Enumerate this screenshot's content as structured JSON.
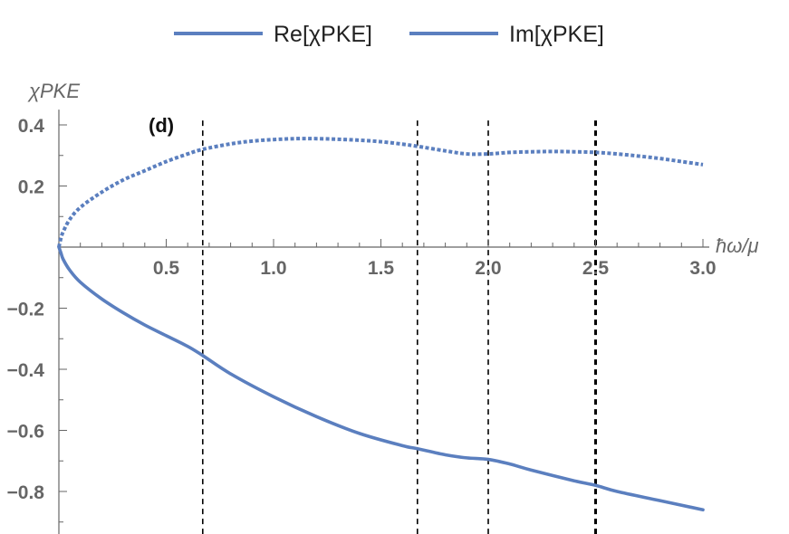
{
  "chart_data": {
    "type": "line",
    "panel_label": "(d)",
    "xlabel": "ħω/μ",
    "ylabel": "χPKE",
    "xlim": [
      0,
      3.0
    ],
    "ylim": [
      -0.94,
      0.45
    ],
    "x_ticks": [
      "0.5",
      "1.0",
      "1.5",
      "2.0",
      "2.5",
      "3.0"
    ],
    "y_ticks": [
      "0.4",
      "0.2",
      "−0.2",
      "−0.4",
      "−0.6",
      "−0.8"
    ],
    "vertical_lines": [
      0.67,
      1.67,
      2.0,
      2.5
    ],
    "legend": {
      "placement": "top-center",
      "entries": [
        {
          "label": "Re[χPKE]",
          "series": 0
        },
        {
          "label": "Im[χPKE]",
          "series": 1
        }
      ]
    },
    "colors": {
      "series": "#5b7fbf",
      "axis": "#666666",
      "vline": "#000000"
    },
    "series": [
      {
        "name": "Re[χPKE]",
        "style": "solid",
        "x": [
          0,
          0.01,
          0.02,
          0.05,
          0.1,
          0.2,
          0.3,
          0.4,
          0.5,
          0.6,
          0.67,
          0.8,
          1.0,
          1.2,
          1.4,
          1.6,
          1.67,
          1.8,
          1.9,
          2.0,
          2.1,
          2.2,
          2.4,
          2.5,
          2.6,
          2.8,
          3.0
        ],
        "y": [
          0,
          -0.02,
          -0.04,
          -0.075,
          -0.115,
          -0.17,
          -0.215,
          -0.255,
          -0.29,
          -0.325,
          -0.355,
          -0.415,
          -0.49,
          -0.555,
          -0.61,
          -0.65,
          -0.66,
          -0.68,
          -0.69,
          -0.695,
          -0.71,
          -0.73,
          -0.765,
          -0.78,
          -0.8,
          -0.83,
          -0.86
        ]
      },
      {
        "name": "Im[χPKE]",
        "style": "dotted",
        "x": [
          0,
          0.01,
          0.02,
          0.05,
          0.1,
          0.2,
          0.3,
          0.4,
          0.5,
          0.6,
          0.67,
          0.8,
          0.9,
          1.0,
          1.1,
          1.2,
          1.3,
          1.4,
          1.5,
          1.6,
          1.67,
          1.8,
          1.9,
          2.0,
          2.1,
          2.2,
          2.3,
          2.4,
          2.5,
          2.6,
          2.7,
          2.8,
          2.9,
          3.0
        ],
        "y": [
          0,
          0.03,
          0.05,
          0.09,
          0.13,
          0.18,
          0.22,
          0.25,
          0.28,
          0.305,
          0.32,
          0.338,
          0.347,
          0.352,
          0.355,
          0.355,
          0.353,
          0.35,
          0.345,
          0.337,
          0.33,
          0.315,
          0.305,
          0.305,
          0.31,
          0.312,
          0.313,
          0.312,
          0.31,
          0.305,
          0.298,
          0.29,
          0.28,
          0.27
        ]
      }
    ]
  }
}
